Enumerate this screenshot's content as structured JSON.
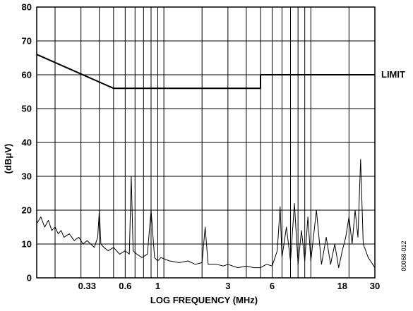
{
  "chart_data": {
    "type": "line",
    "xlabel": "LOG FREQUENCY (MHz)",
    "ylabel": "(dBμV)",
    "x_scale": "log",
    "xlim": [
      0.15,
      30
    ],
    "ylim": [
      0,
      80
    ],
    "y_ticks": [
      0,
      10,
      20,
      30,
      40,
      50,
      60,
      70,
      80
    ],
    "x_tick_labels": [
      {
        "value": 0.33,
        "label": "0.33"
      },
      {
        "value": 0.6,
        "label": "0.6"
      },
      {
        "value": 1,
        "label": "1"
      },
      {
        "value": 3,
        "label": "3"
      },
      {
        "value": 6,
        "label": "6"
      },
      {
        "value": 18,
        "label": "18"
      },
      {
        "value": 30,
        "label": "30"
      }
    ],
    "x_gridlines": [
      0.2,
      0.3,
      0.4,
      0.5,
      0.6,
      0.7,
      0.8,
      0.9,
      1,
      1.1,
      2,
      3,
      4,
      5,
      6,
      7,
      8,
      9,
      10,
      11,
      20
    ],
    "y_gridlines": [
      10,
      20,
      30,
      40,
      50,
      60,
      70
    ],
    "grid": true,
    "series": [
      {
        "name": "LIMIT",
        "color": "#000000",
        "points": [
          [
            0.15,
            66
          ],
          [
            0.5,
            56
          ],
          [
            5,
            56
          ],
          [
            5,
            60
          ],
          [
            30,
            60
          ]
        ]
      },
      {
        "name": "",
        "color": "#000000",
        "points": [
          [
            0.15,
            16
          ],
          [
            0.16,
            18
          ],
          [
            0.17,
            15
          ],
          [
            0.18,
            17
          ],
          [
            0.19,
            14
          ],
          [
            0.2,
            15
          ],
          [
            0.21,
            13
          ],
          [
            0.22,
            14
          ],
          [
            0.23,
            12
          ],
          [
            0.25,
            13
          ],
          [
            0.27,
            11
          ],
          [
            0.29,
            12
          ],
          [
            0.31,
            10
          ],
          [
            0.33,
            11
          ],
          [
            0.35,
            10
          ],
          [
            0.37,
            9
          ],
          [
            0.39,
            12
          ],
          [
            0.4,
            20
          ],
          [
            0.41,
            10
          ],
          [
            0.43,
            9
          ],
          [
            0.46,
            8
          ],
          [
            0.5,
            9
          ],
          [
            0.55,
            7
          ],
          [
            0.6,
            8
          ],
          [
            0.64,
            7
          ],
          [
            0.66,
            30
          ],
          [
            0.68,
            8
          ],
          [
            0.72,
            7
          ],
          [
            0.78,
            6
          ],
          [
            0.85,
            7
          ],
          [
            0.9,
            20
          ],
          [
            0.95,
            6
          ],
          [
            1.0,
            5
          ],
          [
            1.05,
            6
          ],
          [
            1.2,
            5
          ],
          [
            1.4,
            4.5
          ],
          [
            1.6,
            5
          ],
          [
            1.8,
            4
          ],
          [
            2.0,
            4.5
          ],
          [
            2.1,
            15
          ],
          [
            2.2,
            4
          ],
          [
            2.5,
            4
          ],
          [
            2.8,
            3.5
          ],
          [
            3.0,
            4
          ],
          [
            3.5,
            3
          ],
          [
            4.0,
            3.5
          ],
          [
            4.5,
            3
          ],
          [
            5.0,
            3
          ],
          [
            5.5,
            4
          ],
          [
            6.0,
            3.5
          ],
          [
            6.5,
            8
          ],
          [
            6.8,
            21
          ],
          [
            7.0,
            6
          ],
          [
            7.5,
            15
          ],
          [
            8.0,
            5
          ],
          [
            8.5,
            22
          ],
          [
            9.0,
            4
          ],
          [
            9.5,
            14
          ],
          [
            10.0,
            5
          ],
          [
            10.5,
            18
          ],
          [
            11.0,
            5
          ],
          [
            12.0,
            20
          ],
          [
            13.0,
            4
          ],
          [
            14.0,
            12
          ],
          [
            15.0,
            4
          ],
          [
            16.0,
            10
          ],
          [
            17.0,
            3
          ],
          [
            18.0,
            8
          ],
          [
            19.0,
            12
          ],
          [
            20.0,
            18
          ],
          [
            21.0,
            10
          ],
          [
            22.0,
            20
          ],
          [
            23.0,
            12
          ],
          [
            24.0,
            35
          ],
          [
            25.0,
            10
          ],
          [
            26.0,
            8
          ],
          [
            27.0,
            6
          ],
          [
            28.0,
            5
          ],
          [
            29.0,
            4
          ],
          [
            30.0,
            3
          ]
        ]
      }
    ],
    "annotations": [
      {
        "text": "LIMIT",
        "x": 30,
        "y": 60
      },
      {
        "text": "00068-012",
        "orientation": "vertical"
      }
    ]
  }
}
